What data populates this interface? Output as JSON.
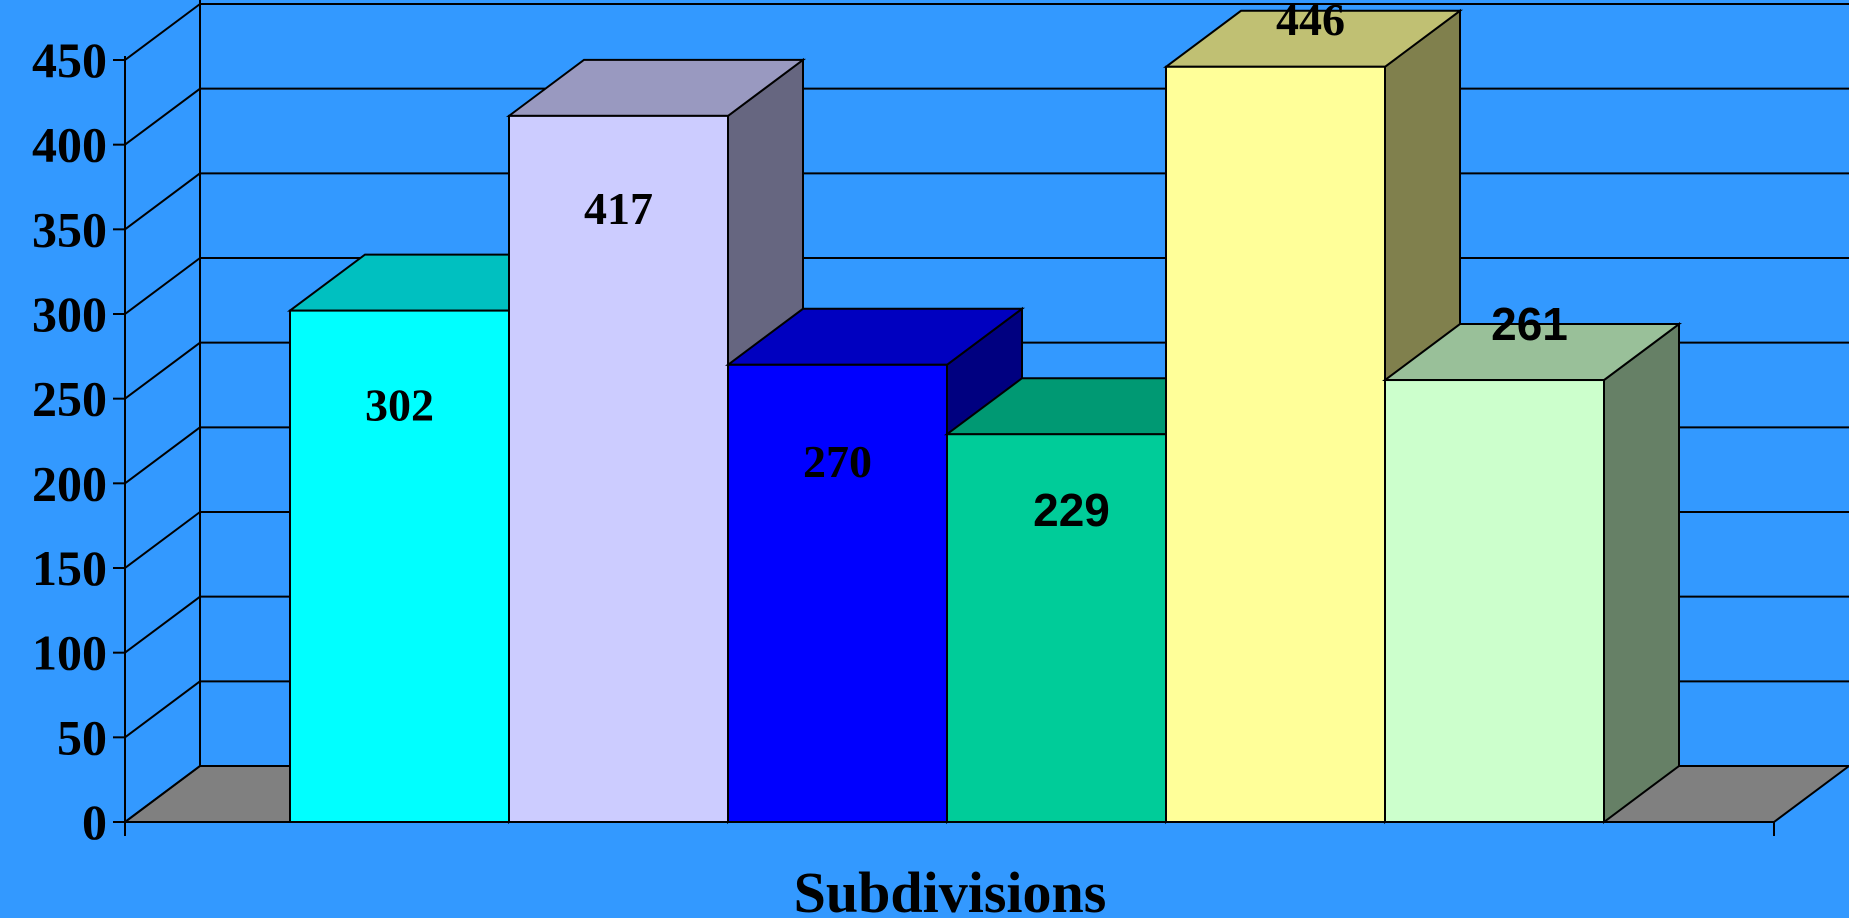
{
  "chart_data": {
    "type": "bar",
    "categories": [
      "",
      "",
      "",
      "",
      "",
      ""
    ],
    "values": [
      302,
      417,
      270,
      229,
      446,
      261
    ],
    "bar_label_font": [
      "serif",
      "serif",
      "serif",
      "sans",
      "serif",
      "sans"
    ],
    "xlabel": "Subdivisions",
    "ylabel": "",
    "ylim": [
      0,
      450
    ],
    "yticks": [
      "0",
      "50",
      "100",
      "150",
      "200",
      "250",
      "300",
      "350",
      "400",
      "450"
    ],
    "grid": true,
    "legend": "none",
    "three_d": true,
    "colors": {
      "background": "#3399FF",
      "floor": "#808080",
      "bars": [
        {
          "front": "#00FFFF",
          "top": "#00C0C0",
          "side": "#008080"
        },
        {
          "front": "#CCCCFF",
          "top": "#9999C0",
          "side": "#666680"
        },
        {
          "front": "#0000FF",
          "top": "#0000C0",
          "side": "#000080"
        },
        {
          "front": "#00CC99",
          "top": "#009973",
          "side": "#00664D"
        },
        {
          "front": "#FFFF99",
          "top": "#C0C073",
          "side": "#80804D"
        },
        {
          "front": "#CCFFCC",
          "top": "#99C099",
          "side": "#668066"
        }
      ]
    }
  }
}
